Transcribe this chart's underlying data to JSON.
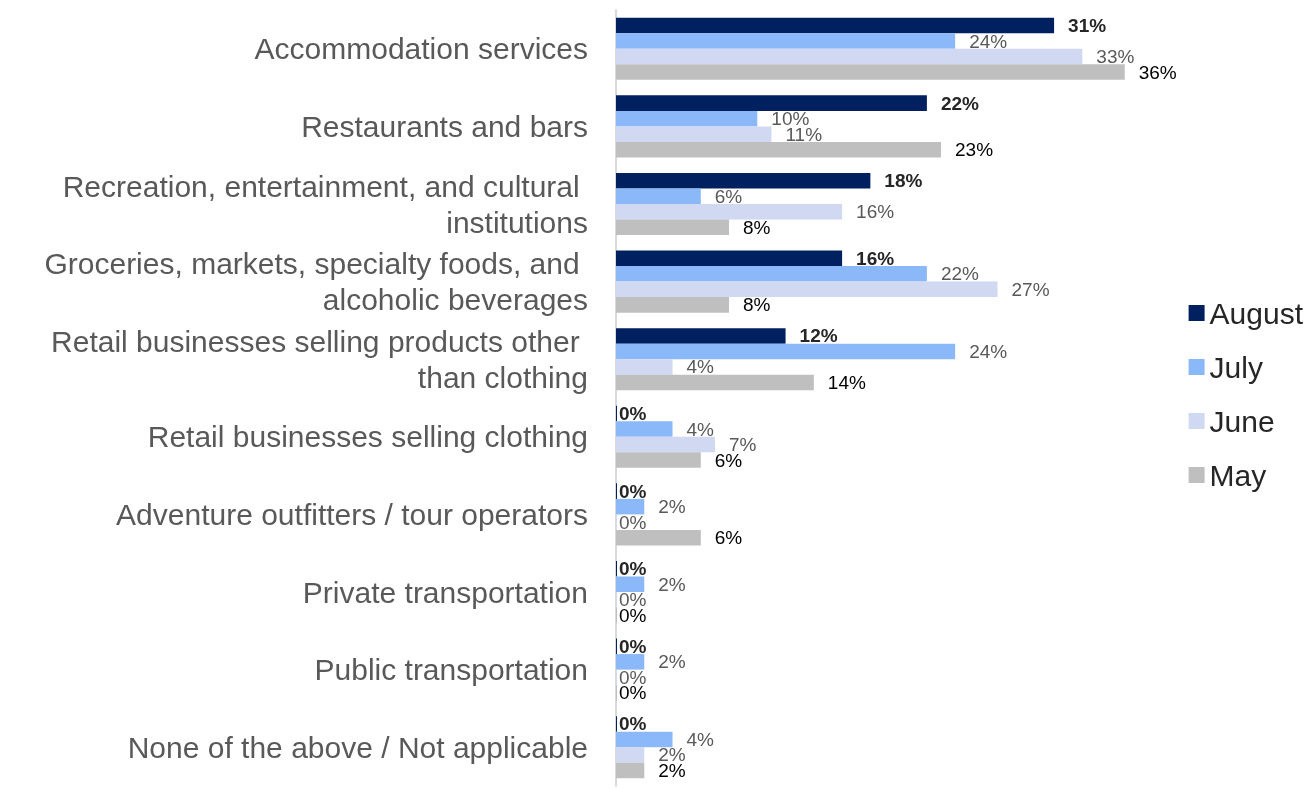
{
  "chart_data": {
    "type": "bar",
    "orientation": "horizontal",
    "legend": "right",
    "categories": [
      "Accommodation services",
      "Restaurants and bars",
      "Recreation, entertainment, and cultural institutions",
      "Groceries, markets, specialty foods, and alcoholic beverages",
      "Retail businesses selling products other than clothing",
      "Retail businesses selling clothing",
      "Adventure outfitters / tour operators",
      "Private transportation",
      "Public transportation",
      "None of the above / Not applicable"
    ],
    "series": [
      {
        "name": "August",
        "color": "#002060",
        "values": [
          31,
          22,
          18,
          16,
          12,
          0,
          0,
          0,
          0,
          0
        ],
        "value_labels": [
          "31%",
          "22%",
          "18%",
          "16%",
          "12%",
          "0%",
          "0%",
          "0%",
          "0%",
          "0%"
        ]
      },
      {
        "name": "July",
        "color": "#8ab8f8",
        "values": [
          24,
          10,
          6,
          22,
          24,
          4,
          2,
          2,
          2,
          4
        ],
        "value_labels": [
          "24%",
          "10%",
          "6%",
          "22%",
          "24%",
          "4%",
          "2%",
          "2%",
          "2%",
          "4%"
        ]
      },
      {
        "name": "June",
        "color": "#d0d8f2",
        "values": [
          33,
          11,
          16,
          27,
          4,
          7,
          0,
          0,
          0,
          2
        ],
        "value_labels": [
          "33%",
          "11%",
          "16%",
          "27%",
          "4%",
          "7%",
          "0%",
          "0%",
          "0%",
          "2%"
        ]
      },
      {
        "name": "May",
        "color": "#bfbfbf",
        "values": [
          36,
          23,
          8,
          8,
          14,
          6,
          6,
          0,
          0,
          2
        ],
        "value_labels": [
          "36%",
          "23%",
          "8%",
          "8%",
          "14%",
          "6%",
          "6%",
          "0%",
          "0%",
          "2%"
        ]
      }
    ]
  }
}
